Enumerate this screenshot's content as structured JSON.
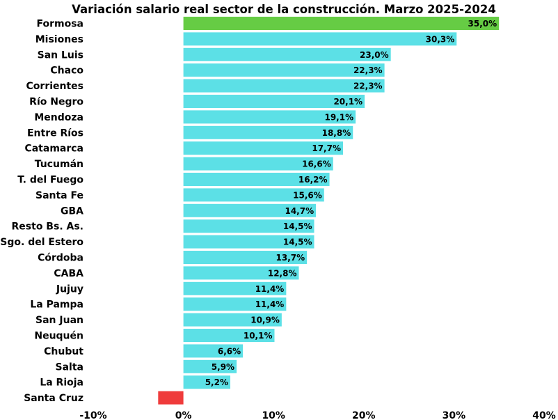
{
  "chart_data": {
    "type": "bar",
    "orientation": "horizontal",
    "title": "Variación salario real sector de la construcción. Marzo 2025-2024",
    "xlabel": "",
    "ylabel": "",
    "xlim": [
      -10,
      40
    ],
    "x_ticks": [
      -10,
      0,
      10,
      20,
      30,
      40
    ],
    "x_tick_labels": [
      "-10%",
      "0%",
      "10%",
      "20%",
      "30%",
      "40%"
    ],
    "categories": [
      "Formosa",
      "Misiones",
      "San Luis",
      "Chaco",
      "Corrientes",
      "Río Negro",
      "Mendoza",
      "Entre Ríos",
      "Catamarca",
      "Tucumán",
      "T. del Fuego",
      "Santa Fe",
      "GBA",
      "Resto Bs. As.",
      "Sgo. del Estero",
      "Córdoba",
      "CABA",
      "Jujuy",
      "La Pampa",
      "San Juan",
      "Neuquén",
      "Chubut",
      "Salta",
      "La Rioja",
      "Santa Cruz"
    ],
    "values": [
      35.0,
      30.3,
      23.0,
      22.3,
      22.3,
      20.1,
      19.1,
      18.8,
      17.7,
      16.6,
      16.2,
      15.6,
      14.7,
      14.5,
      14.5,
      13.7,
      12.8,
      11.4,
      11.4,
      10.9,
      10.1,
      6.6,
      5.9,
      5.2,
      -2.8
    ],
    "value_labels": [
      "35,0%",
      "30,3%",
      "23,0%",
      "22,3%",
      "22,3%",
      "20,1%",
      "19,1%",
      "18,8%",
      "17,7%",
      "16,6%",
      "16,2%",
      "15,6%",
      "14,7%",
      "14,5%",
      "14,5%",
      "13,7%",
      "12,8%",
      "11,4%",
      "11,4%",
      "10,9%",
      "10,1%",
      "6,6%",
      "5,9%",
      "5,2%",
      ""
    ],
    "colors": {
      "highest": "#66cc44",
      "default": "#5ce0e6",
      "negative": "#ef3b3b"
    }
  }
}
